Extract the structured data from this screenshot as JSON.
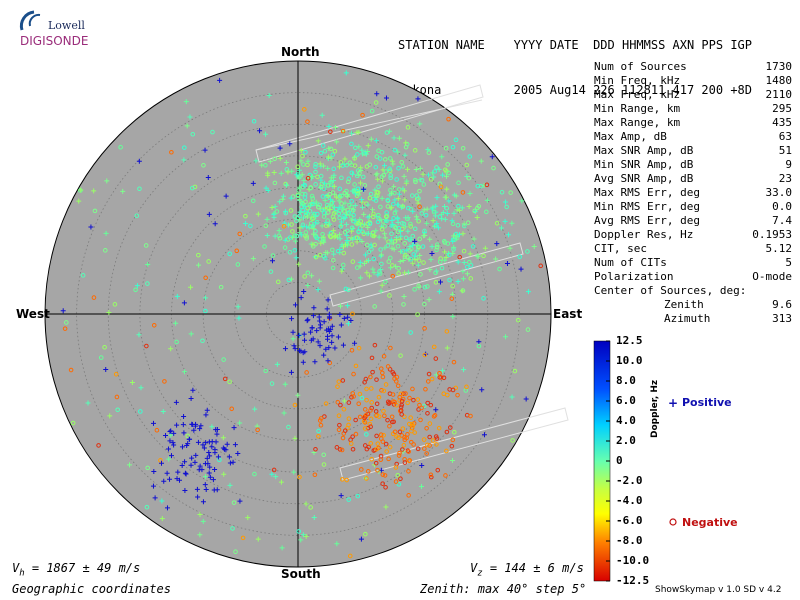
{
  "logo": {
    "lowell": "Lowell",
    "digisonde": "DIGISONDE"
  },
  "header": {
    "line1": "STATION NAME    YYYY DATE  DDD HHMMSS AXN PPS IGP",
    "line2": "Gakona          2005 Aug14 226 112811 417 200 +8D"
  },
  "stats": [
    {
      "label": "Num of Sources",
      "value": "1730"
    },
    {
      "label": "Min Freq, kHz",
      "value": "1480"
    },
    {
      "label": "Max Freq, kHz",
      "value": "2110"
    },
    {
      "label": "Min Range, km",
      "value": "295"
    },
    {
      "label": "Max Range, km",
      "value": "435"
    },
    {
      "label": "Max Amp, dB",
      "value": "63"
    },
    {
      "label": "Max SNR Amp, dB",
      "value": "51"
    },
    {
      "label": "Min SNR Amp, dB",
      "value": "9"
    },
    {
      "label": "Avg SNR Amp, dB",
      "value": "23"
    },
    {
      "label": "Max RMS Err, deg",
      "value": "33.0"
    },
    {
      "label": "Min RMS Err, deg",
      "value": "0.0"
    },
    {
      "label": "Avg RMS Err, deg",
      "value": "7.4"
    },
    {
      "label": "Doppler Res, Hz",
      "value": "0.1953"
    },
    {
      "label": "CIT, sec",
      "value": "5.12"
    },
    {
      "label": "Num of CITs",
      "value": "5"
    },
    {
      "label": "Polarization",
      "value": "O-mode"
    }
  ],
  "center_title": "Center of Sources, deg:",
  "center": [
    {
      "label": "Zenith",
      "value": "9.6"
    },
    {
      "label": "Azimuth",
      "value": "313"
    }
  ],
  "directions": {
    "north": "North",
    "south": "South",
    "east": "East",
    "west": "West"
  },
  "bottom": {
    "vh": "V",
    "vh_sub": "h",
    "vh_val": " = 1867 ± 49 m/s",
    "vz": "V",
    "vz_sub": "z",
    "vz_val": " = 144 ± 6 m/s",
    "coords": "Geographic coordinates",
    "zenith": "Zenith: max 40°  step 5°",
    "version": "ShowSkymap v 1.0   SD v 4.2"
  },
  "legend": {
    "positive": "Positive",
    "negative": "Negative",
    "doppler": "Doppler, Hz"
  },
  "colorbar": [
    "12.5",
    "10.0",
    "8.0",
    "6.0",
    "4.0",
    "2.0",
    "0",
    "-2.0",
    "-4.0",
    "-6.0",
    "-8.0",
    "-10.0",
    "-12.5"
  ],
  "colors": {
    "disk": "#a6a6a6",
    "positive": "#1010d0",
    "negative": "#e03010",
    "green": "#66ff99"
  },
  "chart_data": {
    "type": "scatter",
    "projection": "polar skymap",
    "zenith_max_deg": 40,
    "zenith_step_deg": 5,
    "num_sources": 1730,
    "center_of_sources": {
      "zenith_deg": 9.6,
      "azimuth_deg": 313
    },
    "doppler_scale_hz": [
      -12.5,
      12.5
    ],
    "clusters": [
      {
        "name": "north-cluster",
        "zenith_deg": 18,
        "azimuth_deg": 20,
        "spread_deg": 9,
        "count": 520,
        "doppler": "near-zero"
      },
      {
        "name": "north-east-band",
        "zenith_deg": 25,
        "azimuth_deg": 55,
        "spread_deg": 10,
        "count": 300,
        "doppler": "near-zero"
      },
      {
        "name": "scatter-wide",
        "zenith_deg": 22,
        "azimuth_deg": 0,
        "spread_deg": 40,
        "count": 300,
        "doppler": "mixed"
      },
      {
        "name": "south-east-negative",
        "zenith_deg": 22,
        "azimuth_deg": 140,
        "spread_deg": 9,
        "count": 250,
        "doppler": "negative"
      },
      {
        "name": "south-west-positive",
        "zenith_deg": 27,
        "azimuth_deg": 215,
        "spread_deg": 6,
        "count": 90,
        "doppler": "positive"
      },
      {
        "name": "center-positive",
        "zenith_deg": 4,
        "azimuth_deg": 120,
        "spread_deg": 4,
        "count": 60,
        "doppler": "positive"
      }
    ]
  }
}
